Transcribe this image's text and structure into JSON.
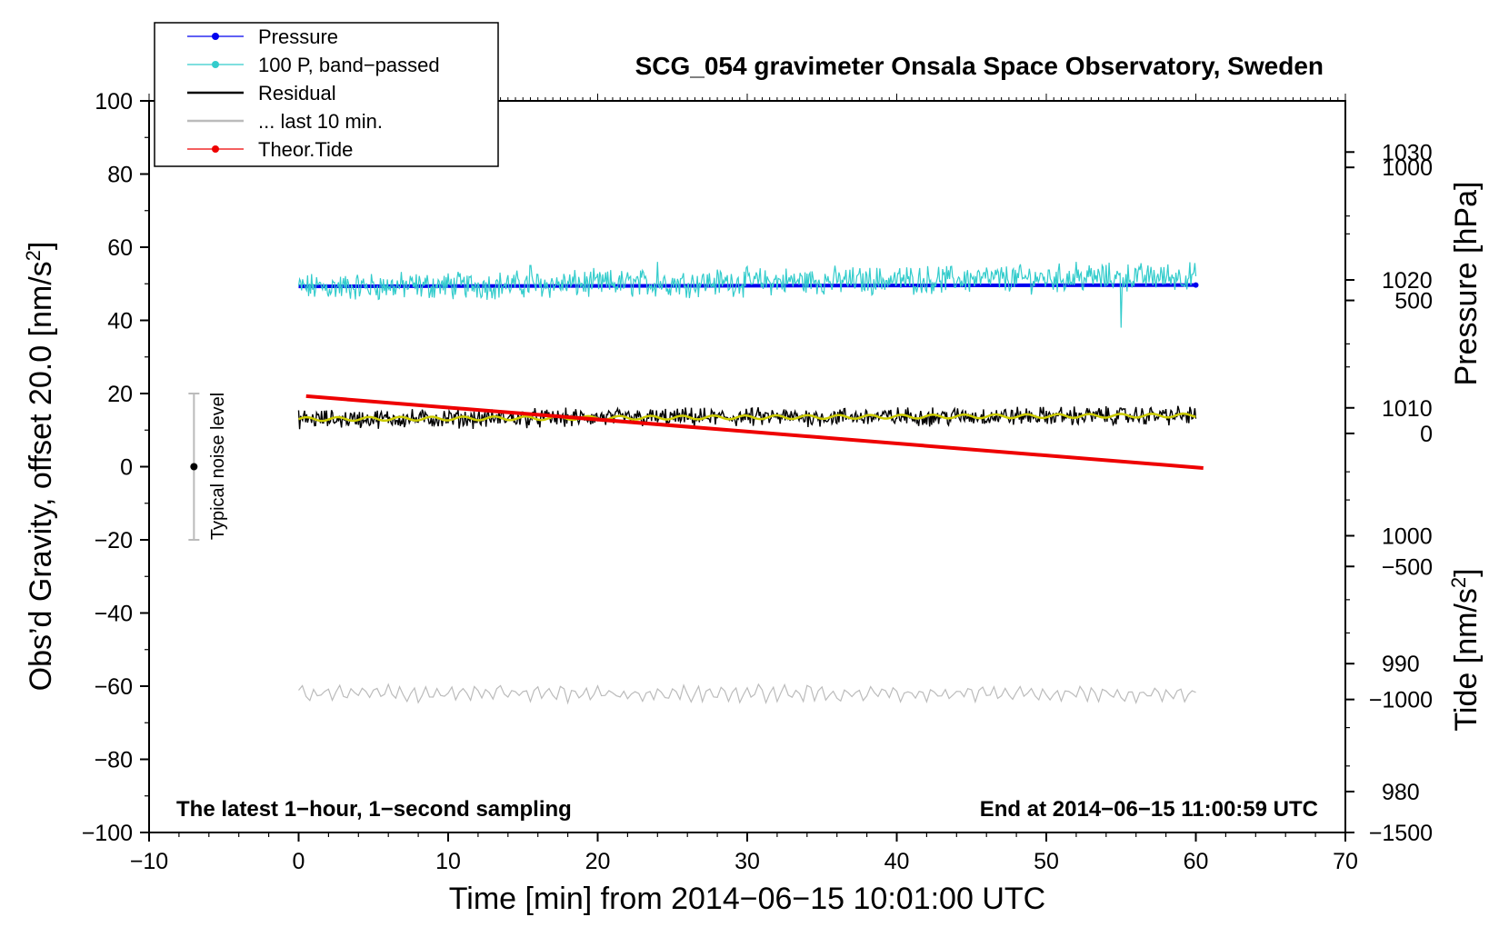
{
  "chart_data": {
    "type": "line",
    "title": "SCG_054 gravimeter Onsala Space Observatory, Sweden",
    "xlabel": "Time [min] from 2014−06−15 10:01:00 UTC",
    "ylabel_prefix": "Obs’d Gravity, offset 20.0 [nm/s",
    "ylabel_sup": "2",
    "ylabel_suffix": "]",
    "xlim": [
      -10,
      70
    ],
    "ylim": [
      -100,
      100
    ],
    "x_ticks": [
      -10,
      0,
      10,
      20,
      30,
      40,
      50,
      60,
      70
    ],
    "x_tick_labels": [
      "−10",
      "0",
      "10",
      "20",
      "30",
      "40",
      "50",
      "60",
      "70"
    ],
    "y_ticks": [
      -100,
      -80,
      -60,
      -40,
      -20,
      0,
      20,
      40,
      60,
      80,
      100
    ],
    "y_tick_labels": [
      "−100",
      "−80",
      "−60",
      "−40",
      "−20",
      "0",
      "20",
      "40",
      "60",
      "80",
      "100"
    ],
    "pressure_axis": {
      "label": "Pressure [hPa]",
      "ticks": [
        980,
        990,
        1000,
        1010,
        1020,
        1030
      ],
      "tick_labels": [
        "980",
        "990",
        "1000",
        "1010",
        "1020",
        "1030"
      ],
      "range": [
        976.8,
        1034
      ]
    },
    "tide_axis": {
      "label_prefix": "Tide [nm/s",
      "label_sup": "2",
      "label_suffix": "]",
      "ticks": [
        -1500,
        -1000,
        -500,
        0,
        500,
        1000
      ],
      "tick_labels": [
        "−1500",
        "−1000",
        "−500",
        "0",
        "500",
        "1000"
      ],
      "range": [
        -1500,
        1250
      ]
    },
    "legend": [
      {
        "name": "Pressure",
        "color": "#0000ee",
        "marker": true
      },
      {
        "name": "100 P, band−passed",
        "color": "#33cccc",
        "marker": true
      },
      {
        "name": "Residual",
        "color": "#000000",
        "marker": false
      },
      {
        "name": "... last 10 min.",
        "color": "#bbbbbb",
        "marker": false
      },
      {
        "name": "Theor.Tide",
        "color": "#ee0000",
        "marker": true
      }
    ],
    "series": [
      {
        "name": "Pressure",
        "color": "#0000ee",
        "axis": "pressure",
        "x": [
          0,
          60
        ],
        "values": [
          1019.5,
          1019.6
        ]
      },
      {
        "name": "100 P, band−passed",
        "color": "#33cccc",
        "axis": "gravity",
        "x_range": [
          0,
          60
        ],
        "baseline": [
          49,
          52
        ],
        "noise": 3,
        "spikes": [
          [
            55,
            38
          ],
          [
            15.5,
            55
          ],
          [
            24,
            56
          ],
          [
            52,
            56
          ]
        ]
      },
      {
        "name": "Residual",
        "color": "#000000",
        "axis": "gravity",
        "x_range": [
          0,
          60
        ],
        "baseline": [
          13,
          14
        ],
        "noise": 2,
        "smooth_color": "#cccc00"
      },
      {
        "name": "... last 10 min.",
        "color": "#bbbbbb",
        "axis": "gravity",
        "x_range": [
          0,
          60
        ],
        "baseline": [
          -62,
          -62
        ],
        "noise": 2
      },
      {
        "name": "Theor.Tide",
        "color": "#ee0000",
        "axis": "tide",
        "x": [
          0.5,
          60.5
        ],
        "values": [
          140,
          -130
        ]
      }
    ],
    "noise_level": {
      "label": "Typical noise level",
      "x": -7,
      "center": 0,
      "low": -20,
      "high": 20,
      "color": "#bbbbbb"
    },
    "annotations": {
      "bottom_left": "The latest 1−hour, 1−second sampling",
      "bottom_right": "End at 2014−06−15 11:00:59 UTC"
    }
  }
}
